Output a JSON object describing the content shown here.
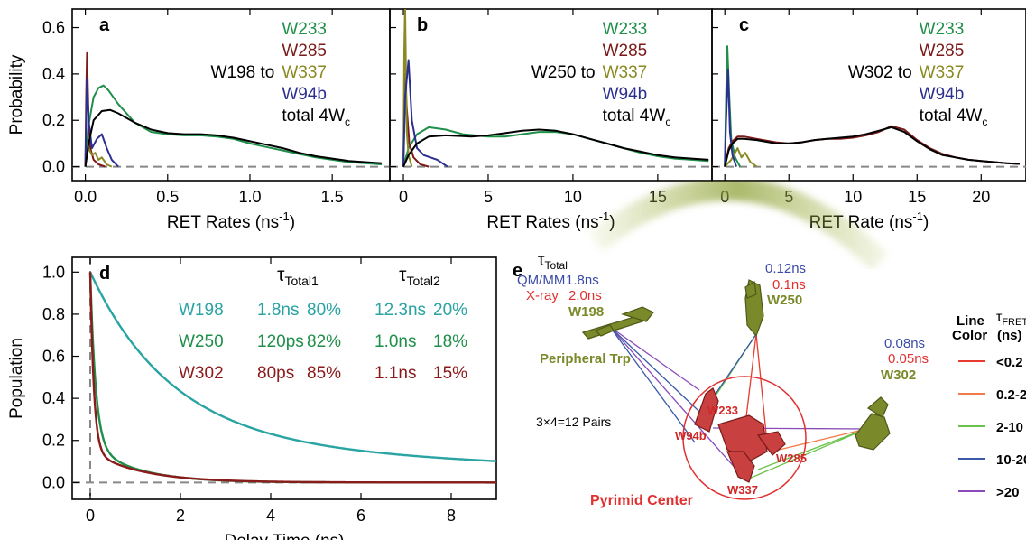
{
  "colors": {
    "W233": "#1f8f4a",
    "W285": "#7a1a1a",
    "W337": "#8a8a22",
    "W94b": "#2b2f8f",
    "total": "#000000",
    "W198": "#2aa3a3",
    "W250": "#1f8f4a",
    "W302": "#8b1a1a",
    "olive": "#7a8a2a",
    "red": "#e03030",
    "blue": "#3a4aa8"
  },
  "chart_data": [
    {
      "type": "line",
      "panel_label": "a",
      "xlabel": "RET Rates (ns-1)",
      "ylabel": "Probability",
      "xlim": [
        -0.08,
        1.85
      ],
      "ylim": [
        -0.06,
        0.68
      ],
      "xticks": [
        0.0,
        0.5,
        1.0,
        1.5
      ],
      "yticks": [
        0.0,
        0.2,
        0.4,
        0.6
      ],
      "xtick_labels": [
        "0.0",
        "0.5",
        "1.0",
        "1.5"
      ],
      "ytick_labels": [
        "0.0",
        "0.2",
        "0.4",
        "0.6"
      ],
      "legend_prefix": "W198 to",
      "legend": [
        "W233",
        "W285",
        "W337",
        "W94b",
        "total 4Wc"
      ],
      "series": [
        {
          "name": "W233",
          "x": [
            0,
            0.02,
            0.05,
            0.08,
            0.11,
            0.14,
            0.2,
            0.3,
            0.4,
            0.5,
            0.6,
            0.7,
            0.8,
            0.9,
            1.0,
            1.1,
            1.2,
            1.3,
            1.4,
            1.5,
            1.6,
            1.7,
            1.8
          ],
          "y": [
            0,
            0.18,
            0.3,
            0.34,
            0.35,
            0.33,
            0.27,
            0.19,
            0.15,
            0.14,
            0.135,
            0.135,
            0.13,
            0.12,
            0.1,
            0.085,
            0.07,
            0.055,
            0.04,
            0.03,
            0.02,
            0.015,
            0.01
          ]
        },
        {
          "name": "W285",
          "x": [
            0,
            0.005,
            0.01,
            0.015,
            0.02,
            0.03,
            0.05,
            0.08,
            0.12
          ],
          "y": [
            0,
            0.3,
            0.49,
            0.35,
            0.2,
            0.08,
            0.03,
            0.01,
            0
          ]
        },
        {
          "name": "W337",
          "x": [
            0,
            0.01,
            0.02,
            0.04,
            0.06,
            0.08,
            0.1,
            0.13,
            0.16
          ],
          "y": [
            0,
            0.05,
            0.08,
            0.05,
            0.06,
            0.03,
            0.04,
            0.01,
            0
          ]
        },
        {
          "name": "W94b",
          "x": [
            0,
            0.005,
            0.01,
            0.02,
            0.04,
            0.07,
            0.1,
            0.13,
            0.16,
            0.2
          ],
          "y": [
            0,
            0.2,
            0.38,
            0.2,
            0.08,
            0.12,
            0.14,
            0.08,
            0.03,
            0
          ]
        },
        {
          "name": "total 4Wc",
          "x": [
            0,
            0.02,
            0.05,
            0.1,
            0.15,
            0.2,
            0.3,
            0.4,
            0.5,
            0.6,
            0.7,
            0.8,
            0.9,
            1.0,
            1.1,
            1.2,
            1.3,
            1.4,
            1.5,
            1.6,
            1.7,
            1.8
          ],
          "y": [
            0,
            0.1,
            0.2,
            0.24,
            0.245,
            0.23,
            0.19,
            0.16,
            0.145,
            0.14,
            0.14,
            0.135,
            0.125,
            0.11,
            0.095,
            0.08,
            0.06,
            0.045,
            0.035,
            0.025,
            0.02,
            0.015
          ]
        }
      ]
    },
    {
      "type": "line",
      "panel_label": "b",
      "xlabel": "RET Rates (ns-1)",
      "ylabel": "",
      "xlim": [
        -0.8,
        18.2
      ],
      "ylim": [
        -0.06,
        0.68
      ],
      "xticks": [
        0,
        5,
        10,
        15
      ],
      "yticks": [
        0.0,
        0.2,
        0.4,
        0.6
      ],
      "xtick_labels": [
        "0",
        "5",
        "10",
        "15"
      ],
      "ytick_labels": [
        "",
        "",
        "",
        ""
      ],
      "legend_prefix": "W250 to",
      "legend": [
        "W233",
        "W285",
        "W337",
        "W94b",
        "total 4Wc"
      ],
      "series": [
        {
          "name": "W233",
          "x": [
            0,
            0.3,
            0.8,
            1.5,
            2.5,
            3.5,
            5,
            6,
            7,
            8,
            9,
            10,
            11,
            12,
            13,
            14,
            15,
            16,
            17,
            18
          ],
          "y": [
            0,
            0.08,
            0.14,
            0.17,
            0.16,
            0.14,
            0.13,
            0.13,
            0.14,
            0.15,
            0.15,
            0.14,
            0.12,
            0.1,
            0.08,
            0.06,
            0.045,
            0.035,
            0.03,
            0.025
          ]
        },
        {
          "name": "W285",
          "x": [
            0,
            0.1,
            0.2,
            0.35,
            0.6,
            1,
            1.5
          ],
          "y": [
            0,
            0.4,
            0.25,
            0.1,
            0.04,
            0.01,
            0
          ]
        },
        {
          "name": "W337",
          "x": [
            0,
            0.05,
            0.1,
            0.15,
            0.2,
            0.3,
            0.5
          ],
          "y": [
            0,
            0.5,
            0.7,
            0.4,
            0.15,
            0.05,
            0
          ]
        },
        {
          "name": "W94b",
          "x": [
            0,
            0.1,
            0.3,
            0.5,
            0.8,
            1.2,
            2,
            2.6
          ],
          "y": [
            0,
            0.3,
            0.46,
            0.2,
            0.08,
            0.05,
            0.03,
            0
          ]
        },
        {
          "name": "total 4Wc",
          "x": [
            0,
            0.3,
            0.8,
            1.5,
            2.5,
            4,
            5,
            6,
            7,
            8,
            9,
            10,
            11,
            12,
            13,
            14,
            15,
            16,
            17,
            18
          ],
          "y": [
            0,
            0.05,
            0.1,
            0.13,
            0.135,
            0.13,
            0.135,
            0.145,
            0.155,
            0.16,
            0.155,
            0.14,
            0.12,
            0.1,
            0.08,
            0.065,
            0.05,
            0.04,
            0.035,
            0.03
          ]
        }
      ]
    },
    {
      "type": "line",
      "panel_label": "c",
      "xlabel": "RET Rate (ns-1)",
      "ylabel": "",
      "xlim": [
        -1.0,
        23.5
      ],
      "ylim": [
        -0.06,
        0.68
      ],
      "xticks": [
        0,
        5,
        10,
        15,
        20
      ],
      "yticks": [
        0.0,
        0.2,
        0.4,
        0.6
      ],
      "xtick_labels": [
        "0",
        "5",
        "10",
        "15",
        "20"
      ],
      "ytick_labels": [
        "",
        "",
        "",
        ""
      ],
      "legend_prefix": "W302 to",
      "legend": [
        "W233",
        "W285",
        "W337",
        "W94b",
        "total 4Wc"
      ],
      "series": [
        {
          "name": "W233",
          "x": [
            0,
            0.1,
            0.2,
            0.35,
            0.5,
            0.8,
            1.2
          ],
          "y": [
            0,
            0.3,
            0.52,
            0.3,
            0.12,
            0.04,
            0
          ]
        },
        {
          "name": "W285",
          "x": [
            0,
            0.3,
            0.6,
            1,
            1.5,
            2.5,
            4,
            5,
            6,
            7,
            8,
            9,
            10,
            11,
            12,
            13,
            14,
            15,
            16,
            17,
            18,
            19,
            20,
            21,
            22,
            23
          ],
          "y": [
            0,
            0.08,
            0.11,
            0.13,
            0.13,
            0.12,
            0.105,
            0.1,
            0.105,
            0.115,
            0.12,
            0.12,
            0.125,
            0.135,
            0.15,
            0.175,
            0.16,
            0.115,
            0.08,
            0.055,
            0.04,
            0.03,
            0.025,
            0.02,
            0.015,
            0.012
          ]
        },
        {
          "name": "W337",
          "x": [
            0,
            0.5,
            1,
            1.3,
            1.6,
            2,
            2.5
          ],
          "y": [
            0,
            0.03,
            0.08,
            0.04,
            0.06,
            0.02,
            0
          ]
        },
        {
          "name": "W94b",
          "x": [
            0,
            0.1,
            0.25,
            0.4,
            0.6,
            0.9
          ],
          "y": [
            0,
            0.2,
            0.42,
            0.15,
            0.05,
            0
          ]
        },
        {
          "name": "total 4Wc",
          "x": [
            0,
            0.3,
            0.6,
            1,
            1.5,
            2.5,
            4,
            5,
            6,
            7,
            8,
            9,
            10,
            11,
            12,
            13,
            14,
            15,
            16,
            17,
            18,
            19,
            20,
            21,
            22,
            23
          ],
          "y": [
            0,
            0.07,
            0.1,
            0.12,
            0.12,
            0.115,
            0.1,
            0.1,
            0.105,
            0.115,
            0.12,
            0.125,
            0.13,
            0.14,
            0.155,
            0.17,
            0.15,
            0.11,
            0.075,
            0.05,
            0.04,
            0.03,
            0.025,
            0.02,
            0.015,
            0.012
          ]
        }
      ]
    },
    {
      "type": "line",
      "panel_label": "d",
      "xlabel": "Delay Time (ns)",
      "ylabel": "Population",
      "xlim": [
        -0.4,
        9.0
      ],
      "ylim": [
        -0.08,
        1.07
      ],
      "xticks": [
        0,
        2,
        4,
        6,
        8
      ],
      "yticks": [
        0.0,
        0.2,
        0.4,
        0.6,
        0.8,
        1.0
      ],
      "xtick_labels": [
        "0",
        "2",
        "4",
        "6",
        "8"
      ],
      "ytick_labels": [
        "0.0",
        "0.2",
        "0.4",
        "0.6",
        "0.8",
        "1.0"
      ],
      "table_headers": [
        "τTotal1",
        "τTotal2"
      ],
      "table_rows": [
        {
          "name": "W198",
          "tau1": "1.8ns",
          "p1": "80%",
          "tau2": "12.3ns",
          "p2": "20%"
        },
        {
          "name": "W250",
          "tau1": "120ps",
          "p1": "82%",
          "tau2": "1.0ns",
          "p2": "18%"
        },
        {
          "name": "W302",
          "tau1": "80ps",
          "p1": "85%",
          "tau2": "1.1ns",
          "p2": "15%"
        }
      ],
      "series": [
        {
          "name": "W198",
          "model": {
            "a1": 0.8,
            "t1": 1.8,
            "a2": 0.2,
            "t2": 12.3
          }
        },
        {
          "name": "W250",
          "model": {
            "a1": 0.82,
            "t1": 0.12,
            "a2": 0.18,
            "t2": 1.0
          }
        },
        {
          "name": "W302",
          "model": {
            "a1": 0.85,
            "t1": 0.08,
            "a2": 0.15,
            "t2": 1.1
          }
        }
      ]
    }
  ],
  "panel_e": {
    "label": "e",
    "tau_total": "τTotal",
    "qmmm": "QM/MM",
    "xray": "X-ray",
    "w198_qm": "1.8ns",
    "w198_xray": "2.0ns",
    "w198": "W198",
    "w250_qm": "0.12ns",
    "w250_xray": "0.1ns",
    "w250": "W250",
    "w302_qm": "0.08ns",
    "w302_xray": "0.05ns",
    "w302": "W302",
    "peripheral": "Peripheral Trp",
    "pairs": "3×4=12 Pairs",
    "pyrimid": "Pyrimid Center",
    "w233": "W233",
    "w94b": "W94b",
    "w285": "W285",
    "w337": "W337",
    "legend_title1": "Line",
    "legend_title2": "Color",
    "legend_tau": "τFRET",
    "legend_ns": "(ns)",
    "legend_items": [
      {
        "label": "<0.2",
        "color": "#e83a2e"
      },
      {
        "label": "0.2-2",
        "color": "#f07b4a"
      },
      {
        "label": "2-10",
        "color": "#6ac24a"
      },
      {
        "label": "10-20",
        "color": "#3a5aa8"
      },
      {
        "label": ">20",
        "color": "#8a4ab8"
      }
    ]
  }
}
